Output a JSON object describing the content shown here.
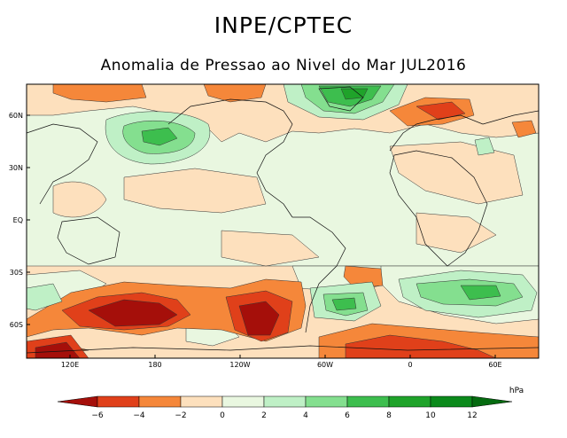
{
  "header": {
    "title": "INPE/CPTEC",
    "subtitle": "Anomalia de Pressao ao Nivel do Mar JUL2016"
  },
  "map": {
    "lat_labels": [
      "60N",
      "30N",
      "EQ",
      "30S",
      "60S"
    ],
    "lon_labels": [
      "120E",
      "180",
      "120W",
      "60W",
      "0",
      "60E"
    ],
    "colors": {
      "m6": "#a50f0a",
      "m4": "#e0401a",
      "m2": "#f5873a",
      "m0": "#fde0bd",
      "p0": "#e9f7e0",
      "p2": "#bff0c6",
      "p4": "#84df8f",
      "p6": "#3dbe4e",
      "p8": "#1fa32a",
      "p10": "#0b8a1b",
      "p12": "#056b10"
    }
  },
  "colorbar": {
    "unit": "hPa",
    "tick_labels": [
      "−6",
      "−4",
      "−2",
      "0",
      "2",
      "4",
      "6",
      "8",
      "10",
      "12"
    ]
  }
}
